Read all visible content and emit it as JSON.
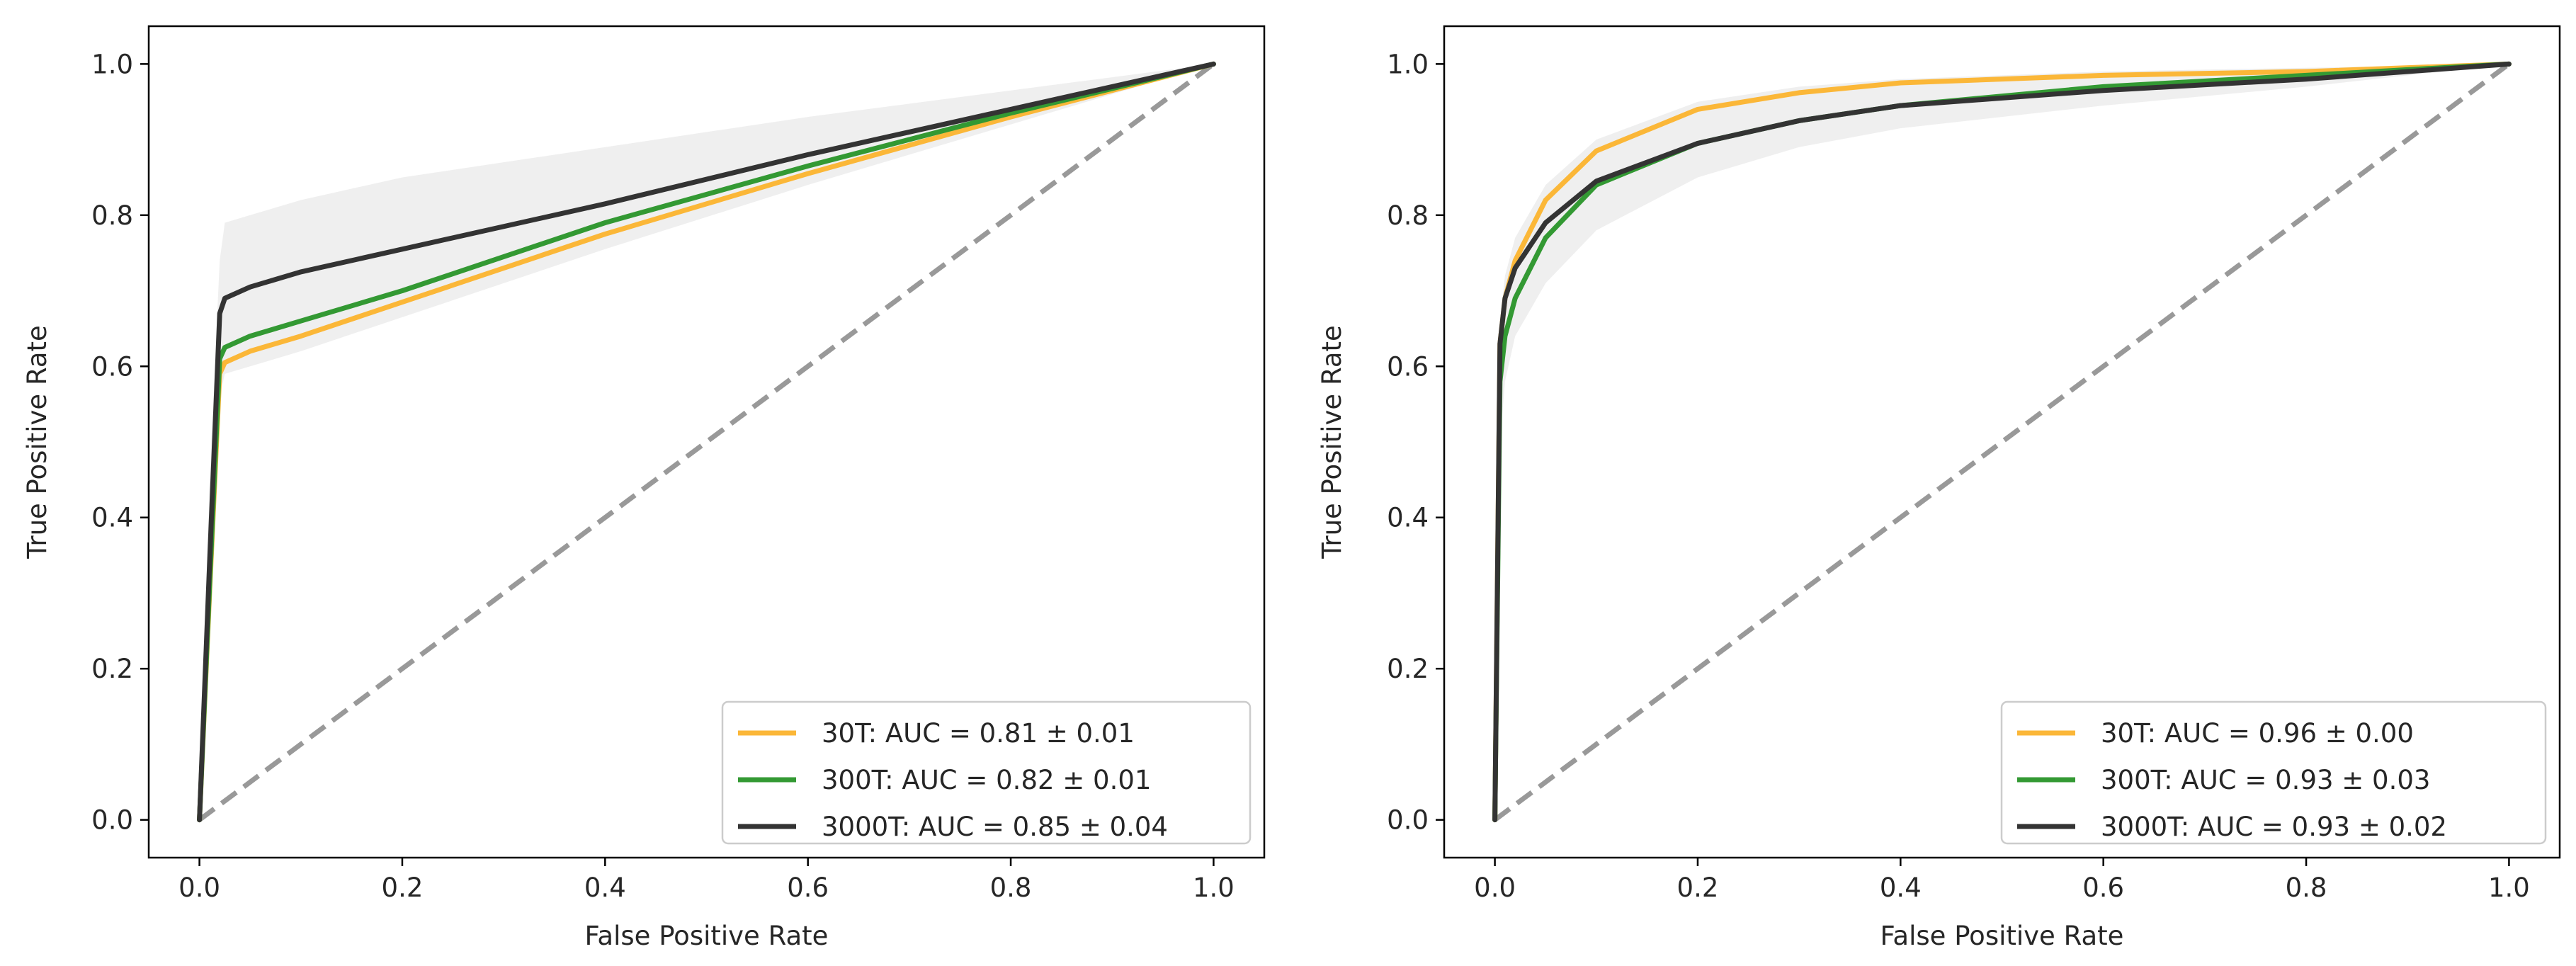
{
  "chart_data": [
    {
      "type": "line",
      "title": "",
      "xlabel": "False Positive Rate",
      "ylabel": "True Positive Rate",
      "xlim": [
        -0.05,
        1.05
      ],
      "ylim": [
        -0.05,
        1.05
      ],
      "xticks": [
        0.0,
        0.2,
        0.4,
        0.6,
        0.8,
        1.0
      ],
      "yticks": [
        0.0,
        0.2,
        0.4,
        0.6,
        0.8,
        1.0
      ],
      "xtick_labels": [
        "0.0",
        "0.2",
        "0.4",
        "0.6",
        "0.8",
        "1.0"
      ],
      "ytick_labels": [
        "0.0",
        "0.2",
        "0.4",
        "0.6",
        "0.8",
        "1.0"
      ],
      "grid": false,
      "legend_position": "bottom-right",
      "chance_line": {
        "x": [
          0,
          1
        ],
        "y": [
          0,
          1
        ],
        "color": "#999999",
        "style": "dashed"
      },
      "band": {
        "color": "#e8e8e8",
        "x": [
          0,
          0.01,
          0.02,
          0.025,
          0.05,
          0.1,
          0.2,
          0.4,
          0.6,
          0.8,
          1.0
        ],
        "upper": [
          0,
          0.45,
          0.74,
          0.79,
          0.8,
          0.82,
          0.85,
          0.89,
          0.93,
          0.965,
          1.0
        ],
        "lower": [
          0,
          0.25,
          0.56,
          0.59,
          0.6,
          0.62,
          0.665,
          0.755,
          0.84,
          0.92,
          1.0
        ]
      },
      "series": [
        {
          "name": "30T: AUC = 0.81 ± 0.01",
          "color": "#fbb738",
          "x": [
            0,
            0.01,
            0.02,
            0.025,
            0.05,
            0.1,
            0.2,
            0.4,
            0.6,
            0.8,
            1.0
          ],
          "y": [
            0,
            0.3,
            0.59,
            0.605,
            0.62,
            0.64,
            0.685,
            0.775,
            0.855,
            0.93,
            1.0
          ]
        },
        {
          "name": "300T: AUC = 0.82 ± 0.01",
          "color": "#339933",
          "x": [
            0,
            0.01,
            0.02,
            0.025,
            0.05,
            0.1,
            0.2,
            0.4,
            0.6,
            0.8,
            1.0
          ],
          "y": [
            0,
            0.31,
            0.61,
            0.625,
            0.64,
            0.66,
            0.7,
            0.79,
            0.865,
            0.935,
            1.0
          ]
        },
        {
          "name": "3000T: AUC = 0.85 ± 0.04",
          "color": "#333333",
          "x": [
            0,
            0.01,
            0.02,
            0.025,
            0.05,
            0.1,
            0.2,
            0.4,
            0.6,
            0.8,
            1.0
          ],
          "y": [
            0,
            0.34,
            0.67,
            0.69,
            0.705,
            0.725,
            0.755,
            0.815,
            0.88,
            0.94,
            1.0
          ]
        }
      ]
    },
    {
      "type": "line",
      "title": "",
      "xlabel": "False Positive Rate",
      "ylabel": "True Positive Rate",
      "xlim": [
        -0.05,
        1.05
      ],
      "ylim": [
        -0.05,
        1.05
      ],
      "xticks": [
        0.0,
        0.2,
        0.4,
        0.6,
        0.8,
        1.0
      ],
      "yticks": [
        0.0,
        0.2,
        0.4,
        0.6,
        0.8,
        1.0
      ],
      "xtick_labels": [
        "0.0",
        "0.2",
        "0.4",
        "0.6",
        "0.8",
        "1.0"
      ],
      "ytick_labels": [
        "0.0",
        "0.2",
        "0.4",
        "0.6",
        "0.8",
        "1.0"
      ],
      "grid": false,
      "legend_position": "bottom-right",
      "chance_line": {
        "x": [
          0,
          1
        ],
        "y": [
          0,
          1
        ],
        "color": "#999999",
        "style": "dashed"
      },
      "band": {
        "color": "#e8e8e8",
        "x": [
          0,
          0.005,
          0.01,
          0.02,
          0.05,
          0.1,
          0.2,
          0.3,
          0.4,
          0.6,
          0.8,
          1.0
        ],
        "upper": [
          0,
          0.66,
          0.72,
          0.77,
          0.84,
          0.9,
          0.95,
          0.97,
          0.98,
          0.99,
          0.995,
          1.0
        ],
        "lower": [
          0,
          0.5,
          0.58,
          0.64,
          0.71,
          0.78,
          0.85,
          0.89,
          0.915,
          0.945,
          0.97,
          1.0
        ]
      },
      "series": [
        {
          "name": "30T: AUC = 0.96 ± 0.00",
          "color": "#fbb738",
          "x": [
            0,
            0.005,
            0.01,
            0.02,
            0.05,
            0.1,
            0.2,
            0.3,
            0.4,
            0.6,
            0.8,
            1.0
          ],
          "y": [
            0,
            0.63,
            0.69,
            0.74,
            0.82,
            0.885,
            0.94,
            0.962,
            0.975,
            0.985,
            0.99,
            1.0
          ]
        },
        {
          "name": "300T: AUC = 0.93 ± 0.03",
          "color": "#339933",
          "x": [
            0,
            0.005,
            0.01,
            0.02,
            0.05,
            0.1,
            0.2,
            0.3,
            0.4,
            0.6,
            0.8,
            1.0
          ],
          "y": [
            0,
            0.58,
            0.64,
            0.69,
            0.77,
            0.84,
            0.895,
            0.925,
            0.945,
            0.97,
            0.985,
            1.0
          ]
        },
        {
          "name": "3000T: AUC = 0.93 ± 0.02",
          "color": "#333333",
          "x": [
            0,
            0.005,
            0.01,
            0.02,
            0.05,
            0.1,
            0.2,
            0.3,
            0.4,
            0.6,
            0.8,
            1.0
          ],
          "y": [
            0,
            0.63,
            0.69,
            0.73,
            0.79,
            0.845,
            0.895,
            0.925,
            0.945,
            0.965,
            0.98,
            1.0
          ]
        }
      ]
    }
  ]
}
